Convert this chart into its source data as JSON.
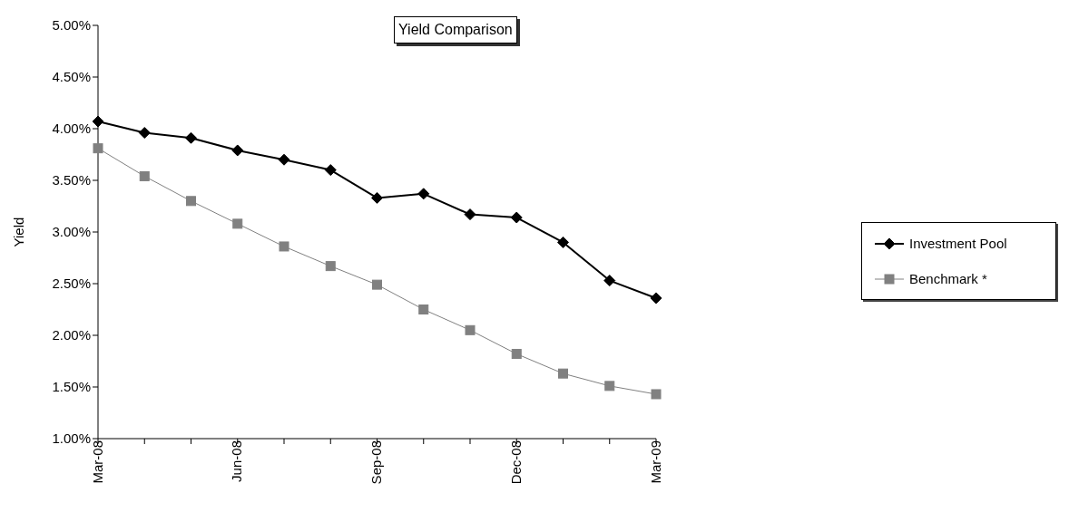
{
  "chart_data": {
    "type": "line",
    "title": "Yield Comparison",
    "ylabel": "Yield",
    "categories": [
      "Mar-08",
      null,
      null,
      "Jun-08",
      null,
      null,
      "Sep-08",
      null,
      null,
      "Dec-08",
      null,
      null,
      "Mar-09"
    ],
    "series": [
      {
        "name": "Investment Pool",
        "color": "#000000",
        "marker": "diamond",
        "values": [
          4.07,
          3.96,
          3.91,
          3.79,
          3.7,
          3.6,
          3.33,
          3.37,
          3.17,
          3.14,
          2.9,
          2.53,
          2.36
        ]
      },
      {
        "name": "Benchmark *",
        "color": "#808080",
        "marker": "square",
        "values": [
          3.81,
          3.54,
          3.3,
          3.08,
          2.86,
          2.67,
          2.49,
          2.25,
          2.05,
          1.82,
          1.63,
          1.51,
          1.43
        ]
      }
    ],
    "ylim": [
      1,
      5
    ],
    "yticks": [
      {
        "value": 1,
        "label": "1.00%"
      },
      {
        "value": 1.5,
        "label": "1.50%"
      },
      {
        "value": 2,
        "label": "2.00%"
      },
      {
        "value": 2.5,
        "label": "2.50%"
      },
      {
        "value": 3,
        "label": "3.00%"
      },
      {
        "value": 3.5,
        "label": "3.50%"
      },
      {
        "value": 4,
        "label": "4.00%"
      },
      {
        "value": 4.5,
        "label": "4.50%"
      },
      {
        "value": 5,
        "label": "5.00%"
      }
    ],
    "grid": false,
    "legend": "right",
    "line_style": "solid"
  }
}
